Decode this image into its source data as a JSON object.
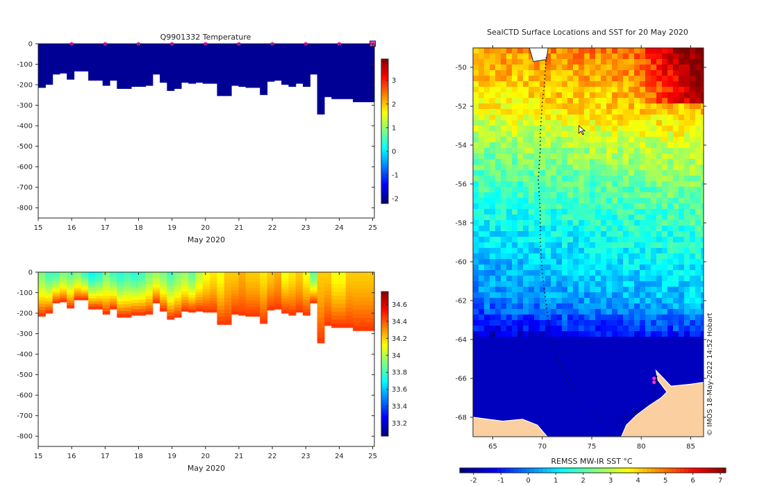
{
  "chart_data": [
    {
      "type": "heatmap",
      "title": "Q9901332  Temperature",
      "xlabel": "May 2020",
      "ylabel": "",
      "x_ticks": [
        "15",
        "16",
        "17",
        "18",
        "19",
        "20",
        "21",
        "22",
        "23",
        "24",
        "25"
      ],
      "y_ticks": [
        "0",
        "-100",
        "-200",
        "-300",
        "-400",
        "-500",
        "-600",
        "-700",
        "-800"
      ],
      "xlim": [
        15,
        25.05
      ],
      "ylim": [
        -850,
        0
      ],
      "colorbar_ticks": [
        "-2",
        "-1",
        "0",
        "1",
        "2",
        "3"
      ],
      "colorbar_range": [
        -2.2,
        3.9
      ],
      "profile_markers": [
        16,
        17,
        18,
        19,
        20,
        21,
        22,
        23,
        24,
        25
      ],
      "profile_bottom_depths": [
        -215,
        -200,
        -150,
        -145,
        -175,
        -135,
        -135,
        -180,
        -180,
        -205,
        -180,
        -220,
        -220,
        -210,
        -210,
        -205,
        -150,
        -190,
        -230,
        -220,
        -190,
        -195,
        -190,
        -195,
        -195,
        -255,
        -255,
        -205,
        -210,
        -215,
        -215,
        -250,
        -185,
        -180,
        -200,
        -210,
        -195,
        -210,
        -150,
        -345,
        -260,
        -270,
        -270,
        -270,
        -285,
        -285,
        -285
      ]
    },
    {
      "type": "heatmap",
      "title": "",
      "xlabel": "May 2020",
      "ylabel": "",
      "x_ticks": [
        "15",
        "16",
        "17",
        "18",
        "19",
        "20",
        "21",
        "22",
        "23",
        "24",
        "25"
      ],
      "y_ticks": [
        "0",
        "-100",
        "-200",
        "-300",
        "-400",
        "-500",
        "-600",
        "-700",
        "-800"
      ],
      "xlim": [
        15,
        25.05
      ],
      "ylim": [
        -850,
        0
      ],
      "colorbar_ticks": [
        "33.2",
        "33.4",
        "33.6",
        "33.8",
        "34",
        "34.2",
        "34.4",
        "34.6"
      ],
      "colorbar_range": [
        33.05,
        34.75
      ],
      "surface_salinity": [
        33.9,
        33.8,
        33.8,
        33.9,
        33.85,
        33.9,
        33.8,
        33.7,
        33.75,
        33.9,
        33.8,
        33.75,
        33.8,
        33.75,
        33.8,
        33.9,
        33.95,
        33.9,
        33.8,
        33.9,
        33.95,
        33.85,
        34.0,
        34.1,
        34.15,
        34.1,
        34.2,
        34.2,
        34.25,
        34.2,
        34.2,
        34.15,
        34.2,
        34.25,
        34.1,
        34.15,
        34.2,
        34.1,
        33.85,
        34.2,
        34.2,
        34.1,
        34.1,
        34.2,
        34.2,
        34.2,
        34.2
      ],
      "profile_bottom_depths": [
        -215,
        -200,
        -150,
        -145,
        -175,
        -135,
        -135,
        -180,
        -180,
        -205,
        -180,
        -220,
        -220,
        -210,
        -210,
        -205,
        -150,
        -190,
        -230,
        -220,
        -190,
        -195,
        -190,
        -195,
        -195,
        -255,
        -255,
        -205,
        -210,
        -215,
        -215,
        -250,
        -185,
        -180,
        -200,
        -210,
        -195,
        -210,
        -150,
        -345,
        -260,
        -270,
        -270,
        -270,
        -285,
        -285,
        -285
      ]
    },
    {
      "type": "heatmap",
      "title": "SealCTD Surface Locations and SST for 20 May 2020",
      "xlabel": "",
      "ylabel": "",
      "x_ticks": [
        "65",
        "70",
        "75",
        "80",
        "85"
      ],
      "y_ticks": [
        "-50",
        "-52",
        "-54",
        "-56",
        "-58",
        "-60",
        "-62",
        "-64",
        "-66",
        "-68"
      ],
      "xlim": [
        63,
        86.3
      ],
      "ylim": [
        -69,
        -49
      ],
      "colorbar_label": "REMSS MW-IR SST °C",
      "colorbar_ticks": [
        "-2",
        "-1",
        "0",
        "1",
        "2",
        "3",
        "4",
        "5",
        "6",
        "7"
      ],
      "colorbar_range": [
        -2.5,
        7.2
      ],
      "sst_band_by_latitude": [
        {
          "lat": -49,
          "sst": 4.8
        },
        {
          "lat": -52,
          "sst": 3.9
        },
        {
          "lat": -54,
          "sst": 2.8
        },
        {
          "lat": -56,
          "sst": 2.0
        },
        {
          "lat": -58,
          "sst": 1.4
        },
        {
          "lat": -60,
          "sst": 0.8
        },
        {
          "lat": -62,
          "sst": 0.2
        },
        {
          "lat": -63.5,
          "sst": -1.0
        },
        {
          "lat": -64,
          "sst": -1.9
        },
        {
          "lat": -69,
          "sst": -1.9
        }
      ],
      "track": [
        [
          70.4,
          -49.5
        ],
        [
          70.3,
          -50.2
        ],
        [
          70.2,
          -51.0
        ],
        [
          70.0,
          -51.8
        ],
        [
          69.9,
          -52.6
        ],
        [
          69.8,
          -53.4
        ],
        [
          69.8,
          -54.2
        ],
        [
          69.7,
          -55.0
        ],
        [
          69.6,
          -55.8
        ],
        [
          69.7,
          -56.6
        ],
        [
          69.8,
          -57.4
        ],
        [
          69.8,
          -58.2
        ],
        [
          69.8,
          -59.0
        ],
        [
          69.9,
          -59.8
        ],
        [
          70.0,
          -60.6
        ],
        [
          70.2,
          -61.4
        ],
        [
          70.4,
          -62.2
        ],
        [
          70.6,
          -63.0
        ],
        [
          70.8,
          -63.8
        ],
        [
          71.2,
          -64.6
        ],
        [
          71.8,
          -65.4
        ],
        [
          72.6,
          -66.2
        ],
        [
          73.6,
          -67.0
        ],
        [
          74.8,
          -67.8
        ],
        [
          76.0,
          -68.2
        ],
        [
          77.6,
          -68.2
        ],
        [
          78.8,
          -67.9
        ],
        [
          79.8,
          -67.6
        ],
        [
          80.6,
          -67.3
        ],
        [
          81.2,
          -66.9
        ],
        [
          81.5,
          -66.2
        ],
        [
          81.6,
          -65.8
        ]
      ],
      "recent_positions": [
        [
          81.3,
          -66.0
        ],
        [
          81.3,
          -66.2
        ]
      ],
      "cursor_position": [
        73.7,
        -53.0
      ],
      "annotation": "© IMOS 18-May-2022 14:52 Hobart"
    }
  ],
  "colors": {
    "deep_water": "#000a8a",
    "land": "#fbcfa0",
    "marker": "#ff2fd0",
    "axis": "#222222"
  }
}
